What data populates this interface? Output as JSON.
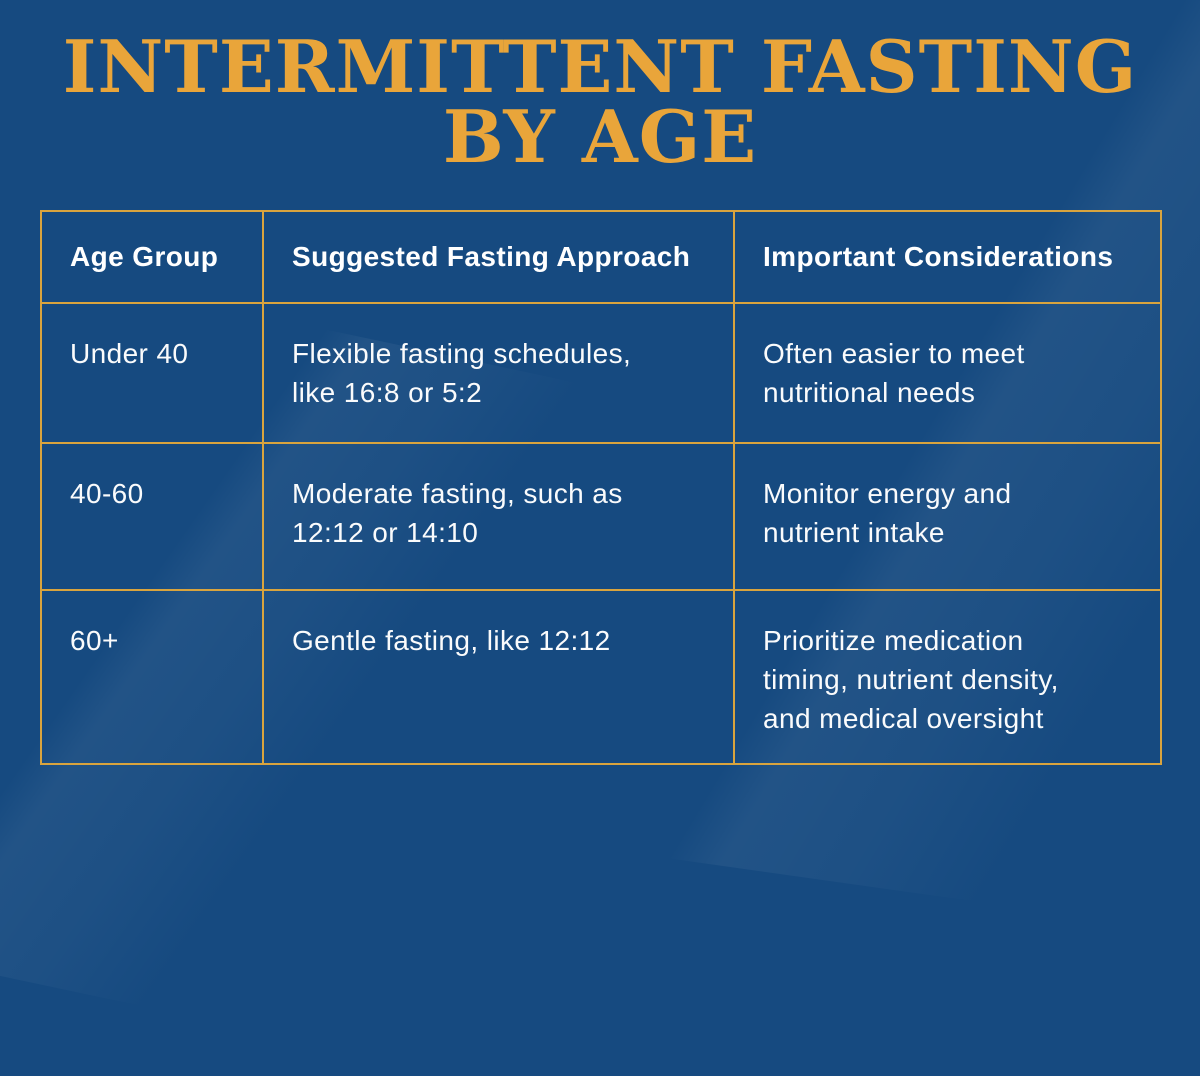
{
  "colors": {
    "background": "#164A80",
    "gold": "#D9A43E",
    "titleGold": "#E9A53A",
    "text": "#FAFBFC"
  },
  "page": {
    "title_line1": "INTERMITTENT FASTING",
    "title_line2": "BY AGE"
  },
  "table": {
    "headers": [
      "Age Group",
      "Suggested Fasting Approach",
      "Important Considerations"
    ],
    "rows": [
      {
        "age_group": "Under 40",
        "approach": "Flexible fasting schedules,\nlike 16:8 or 5:2",
        "considerations": "Often easier to meet\nnutritional needs"
      },
      {
        "age_group": "40-60",
        "approach": "Moderate fasting, such as\n12:12 or 14:10",
        "considerations": "Monitor energy and\nnutrient intake"
      },
      {
        "age_group": "60+",
        "approach": "Gentle fasting, like 12:12",
        "considerations": "Prioritize medication\ntiming, nutrient density,\nand medical oversight"
      }
    ]
  }
}
